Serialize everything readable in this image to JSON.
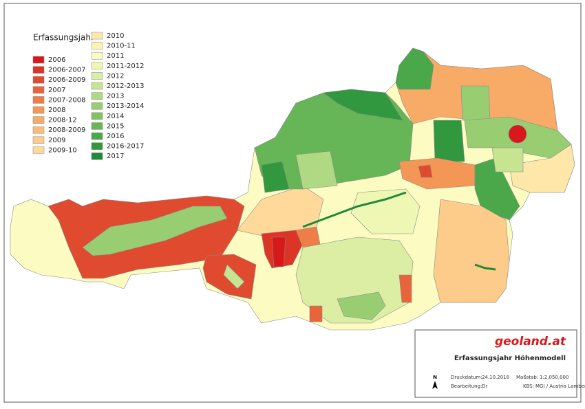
{
  "legend": {
    "title": "Erfassungsjahr",
    "items": [
      {
        "label": "2006",
        "color": "#d7191c"
      },
      {
        "label": "2006-2007",
        "color": "#dc3526"
      },
      {
        "label": "2006-2009",
        "color": "#e04a2e"
      },
      {
        "label": "2007",
        "color": "#e8643a"
      },
      {
        "label": "2007-2008",
        "color": "#ee7d47"
      },
      {
        "label": "2008",
        "color": "#f49655"
      },
      {
        "label": "2008-12",
        "color": "#f8aa67"
      },
      {
        "label": "2008-2009",
        "color": "#fbbc7a"
      },
      {
        "label": "2009",
        "color": "#fdcb8a"
      },
      {
        "label": "2009-10",
        "color": "#fed99a"
      },
      {
        "label": "2010",
        "color": "#fee7a8"
      },
      {
        "label": "2010-11",
        "color": "#fff2b4"
      },
      {
        "label": "2011",
        "color": "#fcfbc2"
      },
      {
        "label": "2011-2012",
        "color": "#eef7b4"
      },
      {
        "label": "2012",
        "color": "#dbeea3"
      },
      {
        "label": "2012-2013",
        "color": "#c6e491"
      },
      {
        "label": "2013",
        "color": "#b0d983"
      },
      {
        "label": "2013-2014",
        "color": "#98cd71"
      },
      {
        "label": "2014",
        "color": "#80c262"
      },
      {
        "label": "2015",
        "color": "#66b556"
      },
      {
        "label": "2016",
        "color": "#4aa84a"
      },
      {
        "label": "2016-2017",
        "color": "#32983f"
      },
      {
        "label": "2017",
        "color": "#1e8a38"
      }
    ]
  },
  "title_block": {
    "brand": "geoland.at",
    "title": "Erfassungsjahr Höhenmodell",
    "print_date_label": "Druckdatum:",
    "print_date": "24.10.2018",
    "scale_label": "Maßstab:",
    "scale": "1:2,050,000",
    "editor_label": "Bearbeitung:",
    "editor": "Dr",
    "crs_label": "KBS:",
    "crs": "MGI / Austria Lambert",
    "north": "N"
  }
}
